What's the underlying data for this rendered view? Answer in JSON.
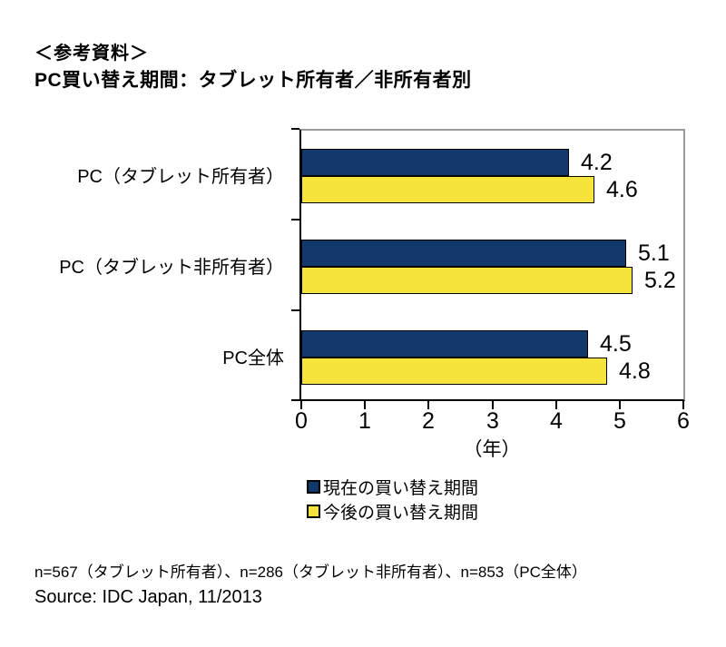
{
  "header": {
    "line1": "＜参考資料＞",
    "line2": "PC買い替え期間：タブレット所有者／非所有者別"
  },
  "chart_data": {
    "type": "bar",
    "orientation": "horizontal",
    "categories": [
      "PC（タブレット所有者）",
      "PC（タブレット非所有者）",
      "PC全体"
    ],
    "series": [
      {
        "name": "現在の買い替え期間",
        "color": "#12396B",
        "values": [
          4.2,
          5.1,
          4.5
        ]
      },
      {
        "name": "今後の買い替え期間",
        "color": "#F6E43C",
        "values": [
          4.6,
          5.2,
          4.8
        ]
      }
    ],
    "value_labels": true,
    "xlabel": "（年）",
    "xlim": [
      0,
      6
    ],
    "xticks": [
      0,
      1,
      2,
      3,
      4,
      5,
      6
    ],
    "grid": false,
    "legend_position": "bottom",
    "colors": {
      "bar_border": "#000000",
      "axis": "#000000",
      "plot_frame": "#9a9a9a"
    }
  },
  "footnote": "n=567（タブレット所有者）、n=286（タブレット非所有者）、n=853（PC全体）",
  "source": "Source: IDC Japan, 11/2013"
}
